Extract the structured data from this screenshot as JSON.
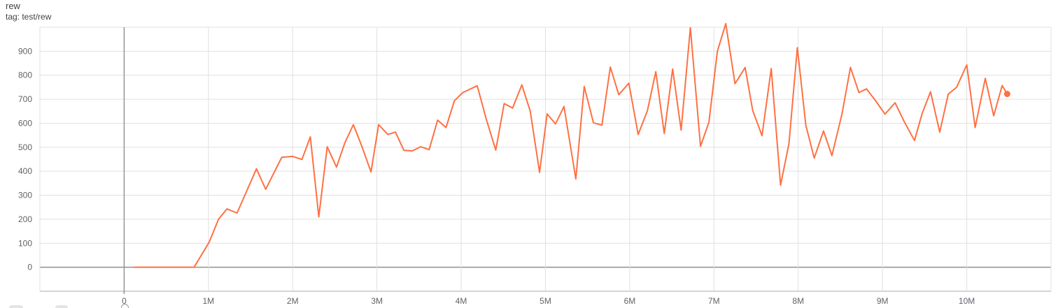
{
  "header": {
    "title": "rew",
    "subtitle": "tag: test/rew"
  },
  "chart_data": {
    "type": "line",
    "title": "rew",
    "xlabel": "",
    "ylabel": "",
    "x_unit": "steps (millions)",
    "x_range_millions": [
      -1,
      11
    ],
    "ylim": [
      -100,
      1000
    ],
    "grid": true,
    "legend_position": "none",
    "end_marker": "dot",
    "x_tick_values_millions": [
      0,
      1,
      2,
      3,
      4,
      5,
      6,
      7,
      8,
      9,
      10
    ],
    "x_tick_labels": [
      "0",
      "1M",
      "2M",
      "3M",
      "4M",
      "5M",
      "6M",
      "7M",
      "8M",
      "9M",
      "10M"
    ],
    "y_tick_values": [
      0,
      100,
      200,
      300,
      400,
      500,
      600,
      700,
      800,
      900
    ],
    "y_tick_labels": [
      "0",
      "100",
      "200",
      "300",
      "400",
      "500",
      "600",
      "700",
      "800",
      "900"
    ],
    "series": [
      {
        "name": "test/rew",
        "color": "#ff7043",
        "x_millions": [
          0.11,
          0.3,
          0.5,
          0.7,
          0.83,
          1.01,
          1.12,
          1.22,
          1.34,
          1.57,
          1.68,
          1.87,
          2.0,
          2.11,
          2.21,
          2.31,
          2.41,
          2.52,
          2.62,
          2.72,
          2.82,
          2.93,
          3.02,
          3.13,
          3.22,
          3.32,
          3.42,
          3.52,
          3.62,
          3.72,
          3.82,
          3.92,
          4.02,
          4.19,
          4.3,
          4.41,
          4.51,
          4.61,
          4.72,
          4.82,
          4.93,
          5.02,
          5.12,
          5.22,
          5.36,
          5.46,
          5.57,
          5.67,
          5.77,
          5.87,
          5.99,
          6.1,
          6.21,
          6.31,
          6.41,
          6.51,
          6.61,
          6.72,
          6.84,
          6.94,
          7.04,
          7.14,
          7.25,
          7.37,
          7.46,
          7.57,
          7.68,
          7.79,
          7.89,
          7.99,
          8.09,
          8.19,
          8.3,
          8.4,
          8.52,
          8.62,
          8.72,
          8.81,
          8.92,
          9.03,
          9.15,
          9.26,
          9.38,
          9.47,
          9.57,
          9.68,
          9.78,
          9.88,
          10.0,
          10.1,
          10.22,
          10.32,
          10.42,
          10.48
        ],
        "values": [
          0,
          0,
          0,
          0,
          0,
          105,
          200,
          243,
          226,
          410,
          325,
          458,
          462,
          449,
          543,
          210,
          502,
          417,
          519,
          594,
          505,
          397,
          594,
          553,
          563,
          487,
          485,
          502,
          490,
          613,
          582,
          694,
          728,
          756,
          614,
          488,
          682,
          663,
          760,
          650,
          395,
          639,
          597,
          670,
          368,
          753,
          602,
          592,
          834,
          719,
          767,
          553,
          652,
          815,
          557,
          826,
          571,
          998,
          504,
          604,
          900,
          1015,
          765,
          832,
          653,
          548,
          828,
          342,
          515,
          915,
          592,
          455,
          568,
          465,
          640,
          833,
          728,
          743,
          693,
          638,
          685,
          605,
          528,
          640,
          731,
          563,
          721,
          750,
          843,
          582,
          787,
          631,
          757,
          722
        ]
      }
    ]
  },
  "colors": {
    "accent": "#ff7043",
    "grid": "#e0e0e0",
    "plot_border": "#dcdcdc",
    "baseline": "#c6c6c6",
    "axis_emphasis": "#8f8f8f",
    "tick_label": "#5f6368",
    "title_text": "#424242"
  },
  "footer": {
    "cutoff_icon_names": [
      "partial-toolbar-icon",
      "partial-toolbar-icon",
      "partial-circle-icon"
    ]
  }
}
